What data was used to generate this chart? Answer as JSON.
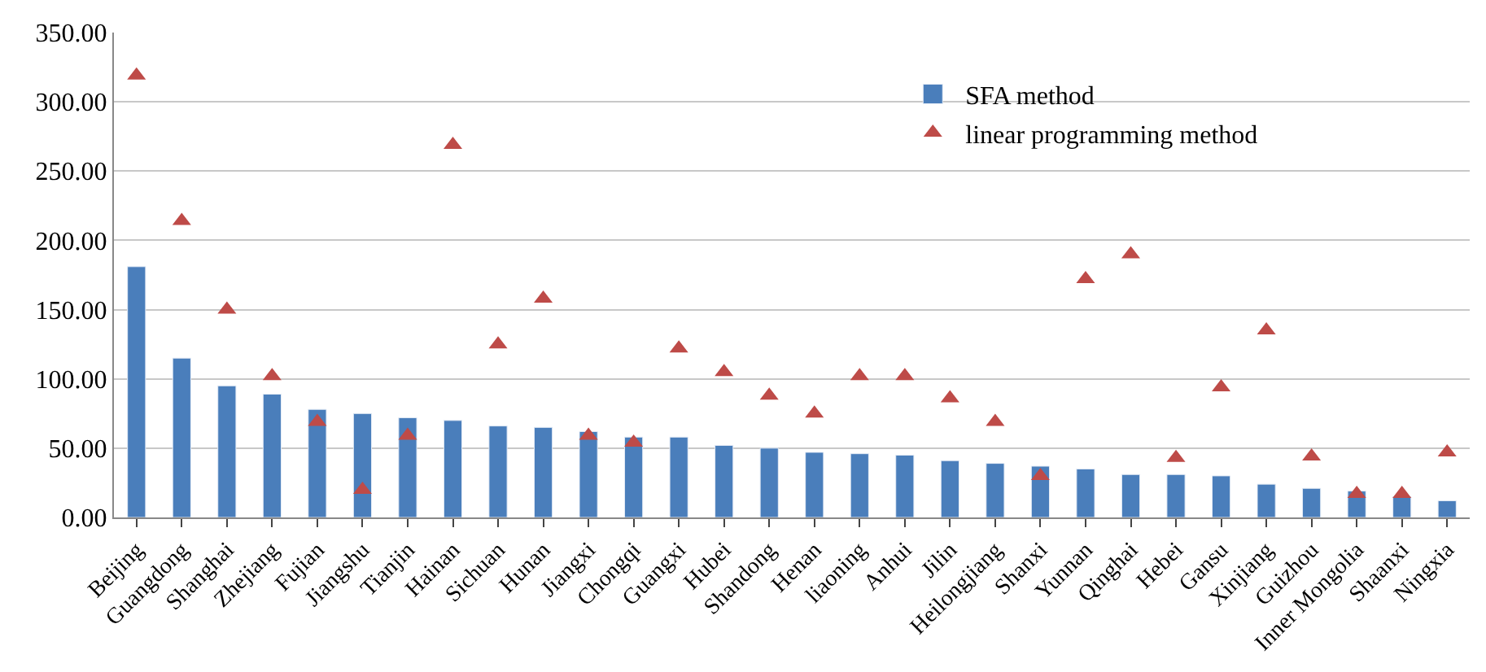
{
  "chart_data": {
    "type": "bar",
    "categories": [
      "Beijing",
      "Guangdong",
      "Shanghai",
      "Zhejiang",
      "Fujian",
      "Jiangshu",
      "Tianjin",
      "Hainan",
      "Sichuan",
      "Hunan",
      "Jiangxi",
      "Chongqi",
      "Guangxi",
      "Hubei",
      "Shandong",
      "Henan",
      "liaoning",
      "Anhui",
      "Jilin",
      "Heilongjiang",
      "Shanxi",
      "Yunnan",
      "Qinghai",
      "Hebei",
      "Gansu",
      "Xinjiang",
      "Guizhou",
      "Inner Mongolia",
      "Shaanxi",
      "Ningxia"
    ],
    "series": [
      {
        "name": "SFA method",
        "color": "#4a7ebb",
        "values": [
          181,
          115,
          95,
          89,
          78,
          75,
          72,
          70,
          66,
          65,
          62,
          58,
          58,
          52,
          50,
          47,
          46,
          45,
          41,
          39,
          37,
          35,
          31,
          31,
          30,
          24,
          21,
          19,
          15,
          12
        ]
      },
      {
        "name": "linear programming method",
        "type": "scatter",
        "marker": "triangle",
        "color": "#be4b48",
        "values": [
          319,
          214,
          150,
          102,
          69,
          20,
          59,
          269,
          125,
          158,
          59,
          54,
          122,
          105,
          88,
          75,
          102,
          102,
          86,
          69,
          30,
          172,
          190,
          43,
          94,
          135,
          44,
          17,
          17,
          47
        ]
      }
    ],
    "ylim": [
      0,
      350
    ],
    "yticks": [
      {
        "value": 0,
        "label": "0.00"
      },
      {
        "value": 50,
        "label": "50.00"
      },
      {
        "value": 100,
        "label": "100.00"
      },
      {
        "value": 150,
        "label": "150.00"
      },
      {
        "value": 200,
        "label": "200.00"
      },
      {
        "value": 250,
        "label": "250.00"
      },
      {
        "value": 300,
        "label": "300.00"
      },
      {
        "value": 350,
        "label": "350.00"
      }
    ],
    "grid": "y",
    "legend": "top right"
  }
}
